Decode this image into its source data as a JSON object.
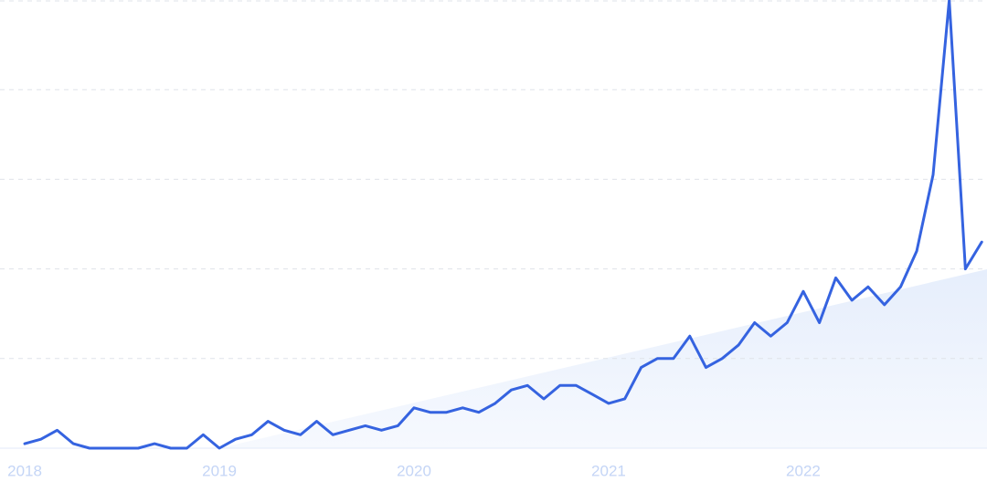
{
  "chart_data": {
    "type": "line",
    "x": [
      2018,
      2018.083,
      2018.167,
      2018.25,
      2018.333,
      2018.417,
      2018.5,
      2018.583,
      2018.667,
      2018.75,
      2018.833,
      2018.917,
      2019,
      2019.083,
      2019.167,
      2019.25,
      2019.333,
      2019.417,
      2019.5,
      2019.583,
      2019.667,
      2019.75,
      2019.833,
      2019.917,
      2020,
      2020.083,
      2020.167,
      2020.25,
      2020.333,
      2020.417,
      2020.5,
      2020.583,
      2020.667,
      2020.75,
      2020.833,
      2020.917,
      2021,
      2021.083,
      2021.167,
      2021.25,
      2021.333,
      2021.417,
      2021.5,
      2021.583,
      2021.667,
      2021.75,
      2021.833,
      2021.917,
      2022,
      2022.083,
      2022.167,
      2022.25,
      2022.333,
      2022.417,
      2022.5,
      2022.583,
      2022.667,
      2022.75,
      2022.833,
      2022.917
    ],
    "values": [
      1,
      2,
      4,
      1,
      0,
      0,
      0,
      0,
      1,
      0,
      0,
      3,
      0,
      2,
      3,
      6,
      4,
      3,
      6,
      3,
      4,
      5,
      4,
      5,
      9,
      8,
      8,
      9,
      8,
      10,
      13,
      14,
      11,
      14,
      14,
      12,
      10,
      11,
      18,
      20,
      20,
      25,
      18,
      20,
      23,
      28,
      25,
      28,
      35,
      28,
      38,
      33,
      36,
      32,
      36,
      44,
      61,
      100,
      40,
      46
    ],
    "color": "#3563e0",
    "xlim": [
      2017.873,
      2022.944
    ],
    "xticks": [
      2018,
      2019,
      2020,
      2021,
      2022
    ],
    "ylim": [
      0,
      100
    ],
    "yticks": [
      0,
      20,
      40,
      60,
      80,
      100
    ],
    "grid": true
  }
}
